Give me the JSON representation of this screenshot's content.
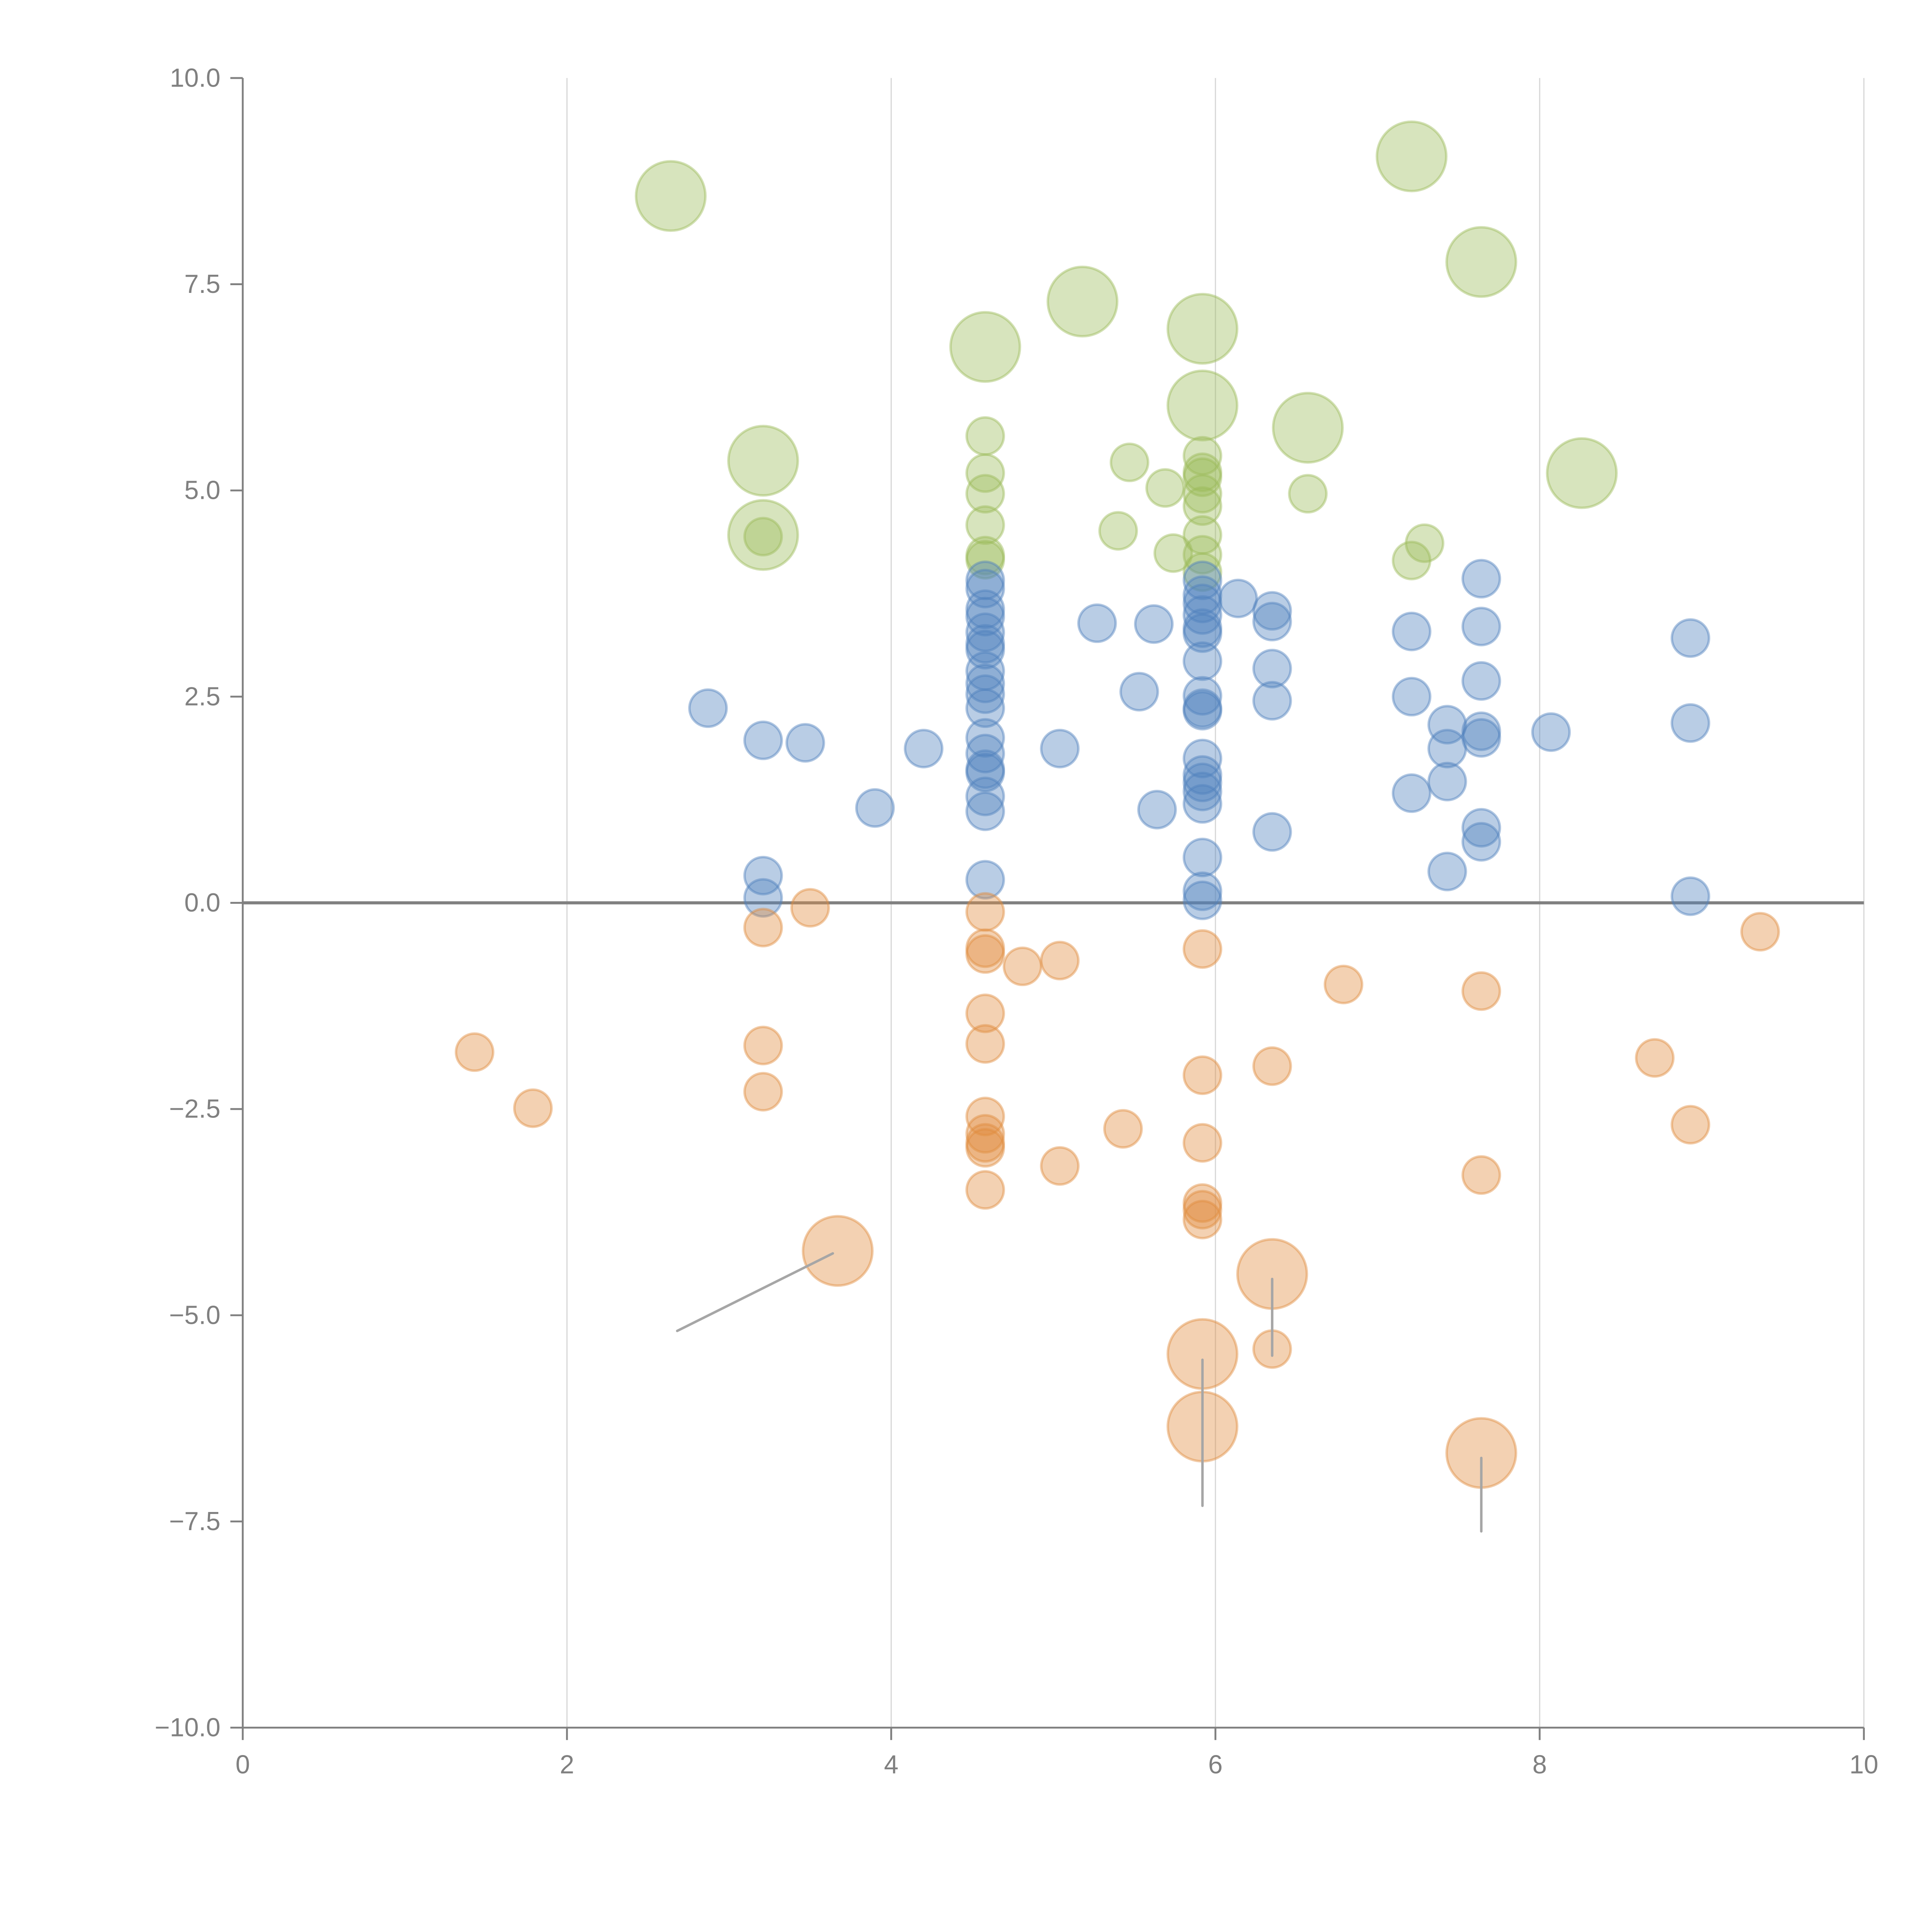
{
  "chart_data": {
    "type": "scatter",
    "subtype": "bubble",
    "title": "",
    "xlabel": "",
    "ylabel": "",
    "xlim": [
      0,
      10
    ],
    "ylim": [
      -10,
      10
    ],
    "x_ticks": [
      "0",
      "2",
      "4",
      "6",
      "8",
      "10"
    ],
    "y_ticks": [
      "10.0",
      "7.5",
      "5.0",
      "2.5",
      "0.0",
      "−2.5",
      "−5.0",
      "−7.5",
      "−10.0"
    ],
    "x_tick_values": [
      0,
      2,
      4,
      6,
      8,
      10
    ],
    "y_tick_values": [
      10,
      7.5,
      5,
      2.5,
      0,
      -2.5,
      -5,
      -7.5,
      -10
    ],
    "grid": "vertical",
    "zero_line": true,
    "legend": "none",
    "colors": {
      "green": "#9bbb59",
      "blue": "#4f81bd",
      "orange": "#e08b3e",
      "axis": "#808080",
      "grid": "#d9d9d9"
    },
    "series": [
      {
        "name": "green",
        "color": "#9bbb59",
        "points": [
          {
            "x": 4.58,
            "y": 5.66,
            "size": 1
          },
          {
            "x": 4.58,
            "y": 5.21,
            "size": 1
          },
          {
            "x": 4.58,
            "y": 4.96,
            "size": 1
          },
          {
            "x": 4.58,
            "y": 4.58,
            "size": 1
          },
          {
            "x": 4.58,
            "y": 4.21,
            "size": 1
          },
          {
            "x": 4.58,
            "y": 4.16,
            "size": 1
          },
          {
            "x": 5.47,
            "y": 5.34,
            "size": 1
          },
          {
            "x": 5.4,
            "y": 4.51,
            "size": 1
          },
          {
            "x": 5.69,
            "y": 5.03,
            "size": 1
          },
          {
            "x": 5.74,
            "y": 4.24,
            "size": 1
          },
          {
            "x": 5.92,
            "y": 5.42,
            "size": 1
          },
          {
            "x": 5.92,
            "y": 5.22,
            "size": 1
          },
          {
            "x": 5.92,
            "y": 5.16,
            "size": 1
          },
          {
            "x": 5.92,
            "y": 4.96,
            "size": 1
          },
          {
            "x": 5.92,
            "y": 4.81,
            "size": 1
          },
          {
            "x": 5.92,
            "y": 4.46,
            "size": 1
          },
          {
            "x": 5.92,
            "y": 4.22,
            "size": 1
          },
          {
            "x": 5.92,
            "y": 4.01,
            "size": 1
          },
          {
            "x": 6.57,
            "y": 4.96,
            "size": 1
          },
          {
            "x": 7.21,
            "y": 4.15,
            "size": 1
          },
          {
            "x": 7.29,
            "y": 4.36,
            "size": 1
          },
          {
            "x": 3.21,
            "y": 4.44,
            "size": 1
          },
          {
            "x": 2.64,
            "y": 8.57,
            "size": 2
          },
          {
            "x": 3.21,
            "y": 5.36,
            "size": 2
          },
          {
            "x": 3.21,
            "y": 4.46,
            "size": 2
          },
          {
            "x": 4.58,
            "y": 6.74,
            "size": 2
          },
          {
            "x": 5.18,
            "y": 7.29,
            "size": 2
          },
          {
            "x": 5.92,
            "y": 6.96,
            "size": 2
          },
          {
            "x": 5.92,
            "y": 6.03,
            "size": 2
          },
          {
            "x": 6.57,
            "y": 5.76,
            "size": 2
          },
          {
            "x": 7.21,
            "y": 9.05,
            "size": 2
          },
          {
            "x": 7.64,
            "y": 7.77,
            "size": 2
          },
          {
            "x": 8.26,
            "y": 5.21,
            "size": 2
          }
        ]
      },
      {
        "name": "blue",
        "color": "#4f81bd",
        "points": [
          {
            "x": 2.87,
            "y": 2.36,
            "size": 1
          },
          {
            "x": 3.21,
            "y": 1.97,
            "size": 1
          },
          {
            "x": 3.47,
            "y": 1.94,
            "size": 1
          },
          {
            "x": 3.21,
            "y": 0.33,
            "size": 1
          },
          {
            "x": 3.21,
            "y": 0.06,
            "size": 1
          },
          {
            "x": 3.9,
            "y": 1.15,
            "size": 1
          },
          {
            "x": 4.2,
            "y": 1.87,
            "size": 1
          },
          {
            "x": 4.58,
            "y": 3.91,
            "size": 1
          },
          {
            "x": 4.58,
            "y": 3.81,
            "size": 1
          },
          {
            "x": 4.58,
            "y": 3.56,
            "size": 1
          },
          {
            "x": 4.58,
            "y": 3.47,
            "size": 1
          },
          {
            "x": 4.58,
            "y": 3.28,
            "size": 1
          },
          {
            "x": 4.58,
            "y": 3.14,
            "size": 1
          },
          {
            "x": 4.58,
            "y": 3.07,
            "size": 1
          },
          {
            "x": 4.58,
            "y": 2.81,
            "size": 1
          },
          {
            "x": 4.58,
            "y": 2.66,
            "size": 1
          },
          {
            "x": 4.58,
            "y": 2.53,
            "size": 1
          },
          {
            "x": 4.58,
            "y": 2.36,
            "size": 1
          },
          {
            "x": 4.58,
            "y": 2.0,
            "size": 1
          },
          {
            "x": 4.58,
            "y": 1.81,
            "size": 1
          },
          {
            "x": 4.58,
            "y": 1.62,
            "size": 1
          },
          {
            "x": 4.58,
            "y": 1.58,
            "size": 1
          },
          {
            "x": 4.58,
            "y": 1.29,
            "size": 1
          },
          {
            "x": 4.58,
            "y": 1.11,
            "size": 1
          },
          {
            "x": 4.58,
            "y": 0.28,
            "size": 1
          },
          {
            "x": 5.04,
            "y": 1.87,
            "size": 1
          },
          {
            "x": 5.27,
            "y": 3.39,
            "size": 1
          },
          {
            "x": 5.53,
            "y": 2.56,
            "size": 1
          },
          {
            "x": 5.62,
            "y": 3.38,
            "size": 1
          },
          {
            "x": 5.64,
            "y": 1.13,
            "size": 1
          },
          {
            "x": 5.92,
            "y": 3.91,
            "size": 1
          },
          {
            "x": 5.92,
            "y": 3.73,
            "size": 1
          },
          {
            "x": 5.92,
            "y": 3.63,
            "size": 1
          },
          {
            "x": 5.92,
            "y": 3.49,
            "size": 1
          },
          {
            "x": 5.92,
            "y": 3.33,
            "size": 1
          },
          {
            "x": 5.92,
            "y": 3.27,
            "size": 1
          },
          {
            "x": 5.92,
            "y": 2.93,
            "size": 1
          },
          {
            "x": 5.92,
            "y": 2.51,
            "size": 1
          },
          {
            "x": 5.92,
            "y": 2.36,
            "size": 1
          },
          {
            "x": 5.92,
            "y": 2.33,
            "size": 1
          },
          {
            "x": 5.92,
            "y": 1.75,
            "size": 1
          },
          {
            "x": 5.92,
            "y": 1.55,
            "size": 1
          },
          {
            "x": 5.92,
            "y": 1.46,
            "size": 1
          },
          {
            "x": 5.92,
            "y": 1.35,
            "size": 1
          },
          {
            "x": 5.92,
            "y": 1.2,
            "size": 1
          },
          {
            "x": 5.92,
            "y": 0.55,
            "size": 1
          },
          {
            "x": 5.92,
            "y": 0.14,
            "size": 1
          },
          {
            "x": 5.92,
            "y": 0.03,
            "size": 1
          },
          {
            "x": 6.14,
            "y": 3.69,
            "size": 1
          },
          {
            "x": 6.35,
            "y": 3.54,
            "size": 1
          },
          {
            "x": 6.35,
            "y": 3.41,
            "size": 1
          },
          {
            "x": 6.35,
            "y": 2.84,
            "size": 1
          },
          {
            "x": 6.35,
            "y": 2.45,
            "size": 1
          },
          {
            "x": 6.35,
            "y": 0.86,
            "size": 1
          },
          {
            "x": 7.21,
            "y": 3.29,
            "size": 1
          },
          {
            "x": 7.21,
            "y": 2.5,
            "size": 1
          },
          {
            "x": 7.21,
            "y": 1.33,
            "size": 1
          },
          {
            "x": 7.43,
            "y": 2.16,
            "size": 1
          },
          {
            "x": 7.43,
            "y": 1.87,
            "size": 1
          },
          {
            "x": 7.43,
            "y": 1.47,
            "size": 1
          },
          {
            "x": 7.43,
            "y": 0.38,
            "size": 1
          },
          {
            "x": 7.64,
            "y": 3.93,
            "size": 1
          },
          {
            "x": 7.64,
            "y": 3.35,
            "size": 1
          },
          {
            "x": 7.64,
            "y": 2.69,
            "size": 1
          },
          {
            "x": 7.64,
            "y": 2.08,
            "size": 1
          },
          {
            "x": 7.64,
            "y": 2.0,
            "size": 1
          },
          {
            "x": 7.64,
            "y": 0.91,
            "size": 1
          },
          {
            "x": 7.64,
            "y": 0.74,
            "size": 1
          },
          {
            "x": 8.07,
            "y": 2.07,
            "size": 1
          },
          {
            "x": 8.93,
            "y": 3.21,
            "size": 1
          },
          {
            "x": 8.93,
            "y": 2.18,
            "size": 1
          },
          {
            "x": 8.93,
            "y": 0.08,
            "size": 1
          }
        ]
      },
      {
        "name": "orange",
        "color": "#e08b3e",
        "points": [
          {
            "x": 1.43,
            "y": -1.81,
            "size": 1
          },
          {
            "x": 1.79,
            "y": -2.49,
            "size": 1
          },
          {
            "x": 3.21,
            "y": -0.3,
            "size": 1
          },
          {
            "x": 3.21,
            "y": -1.73,
            "size": 1
          },
          {
            "x": 3.21,
            "y": -2.29,
            "size": 1
          },
          {
            "x": 3.5,
            "y": -0.06,
            "size": 1
          },
          {
            "x": 4.58,
            "y": -0.11,
            "size": 1
          },
          {
            "x": 4.58,
            "y": -0.55,
            "size": 1
          },
          {
            "x": 4.58,
            "y": -0.62,
            "size": 1
          },
          {
            "x": 4.58,
            "y": -1.34,
            "size": 1
          },
          {
            "x": 4.58,
            "y": -1.71,
            "size": 1
          },
          {
            "x": 4.58,
            "y": -2.59,
            "size": 1
          },
          {
            "x": 4.58,
            "y": -2.8,
            "size": 1
          },
          {
            "x": 4.58,
            "y": -2.91,
            "size": 1
          },
          {
            "x": 4.58,
            "y": -2.97,
            "size": 1
          },
          {
            "x": 4.58,
            "y": -3.48,
            "size": 1
          },
          {
            "x": 4.81,
            "y": -0.77,
            "size": 1
          },
          {
            "x": 5.04,
            "y": -0.7,
            "size": 1
          },
          {
            "x": 5.04,
            "y": -3.19,
            "size": 1
          },
          {
            "x": 5.43,
            "y": -2.74,
            "size": 1
          },
          {
            "x": 5.92,
            "y": -0.56,
            "size": 1
          },
          {
            "x": 5.92,
            "y": -2.09,
            "size": 1
          },
          {
            "x": 5.92,
            "y": -2.91,
            "size": 1
          },
          {
            "x": 5.92,
            "y": -3.64,
            "size": 1
          },
          {
            "x": 5.92,
            "y": -3.72,
            "size": 1
          },
          {
            "x": 5.92,
            "y": -3.84,
            "size": 1
          },
          {
            "x": 6.35,
            "y": -1.98,
            "size": 1
          },
          {
            "x": 6.35,
            "y": -5.41,
            "size": 1
          },
          {
            "x": 6.79,
            "y": -0.99,
            "size": 1
          },
          {
            "x": 7.64,
            "y": -1.07,
            "size": 1
          },
          {
            "x": 7.64,
            "y": -3.3,
            "size": 1
          },
          {
            "x": 8.71,
            "y": -1.88,
            "size": 1
          },
          {
            "x": 8.93,
            "y": -2.69,
            "size": 1
          },
          {
            "x": 9.36,
            "y": -0.35,
            "size": 1
          },
          {
            "x": 3.67,
            "y": -4.22,
            "size": 2
          },
          {
            "x": 5.92,
            "y": -5.47,
            "size": 2
          },
          {
            "x": 5.92,
            "y": -6.35,
            "size": 2
          },
          {
            "x": 6.35,
            "y": -4.5,
            "size": 2
          },
          {
            "x": 7.64,
            "y": -6.67,
            "size": 2
          }
        ]
      }
    ],
    "annotation_leaders": [
      {
        "from": [
          3.64,
          -4.25
        ],
        "to": [
          2.68,
          -5.19
        ]
      },
      {
        "from": [
          5.92,
          -5.54
        ],
        "to": [
          5.92,
          -7.31
        ]
      },
      {
        "from": [
          6.35,
          -4.56
        ],
        "to": [
          6.35,
          -5.49
        ]
      },
      {
        "from": [
          7.64,
          -6.73
        ],
        "to": [
          7.64,
          -7.62
        ]
      }
    ]
  }
}
